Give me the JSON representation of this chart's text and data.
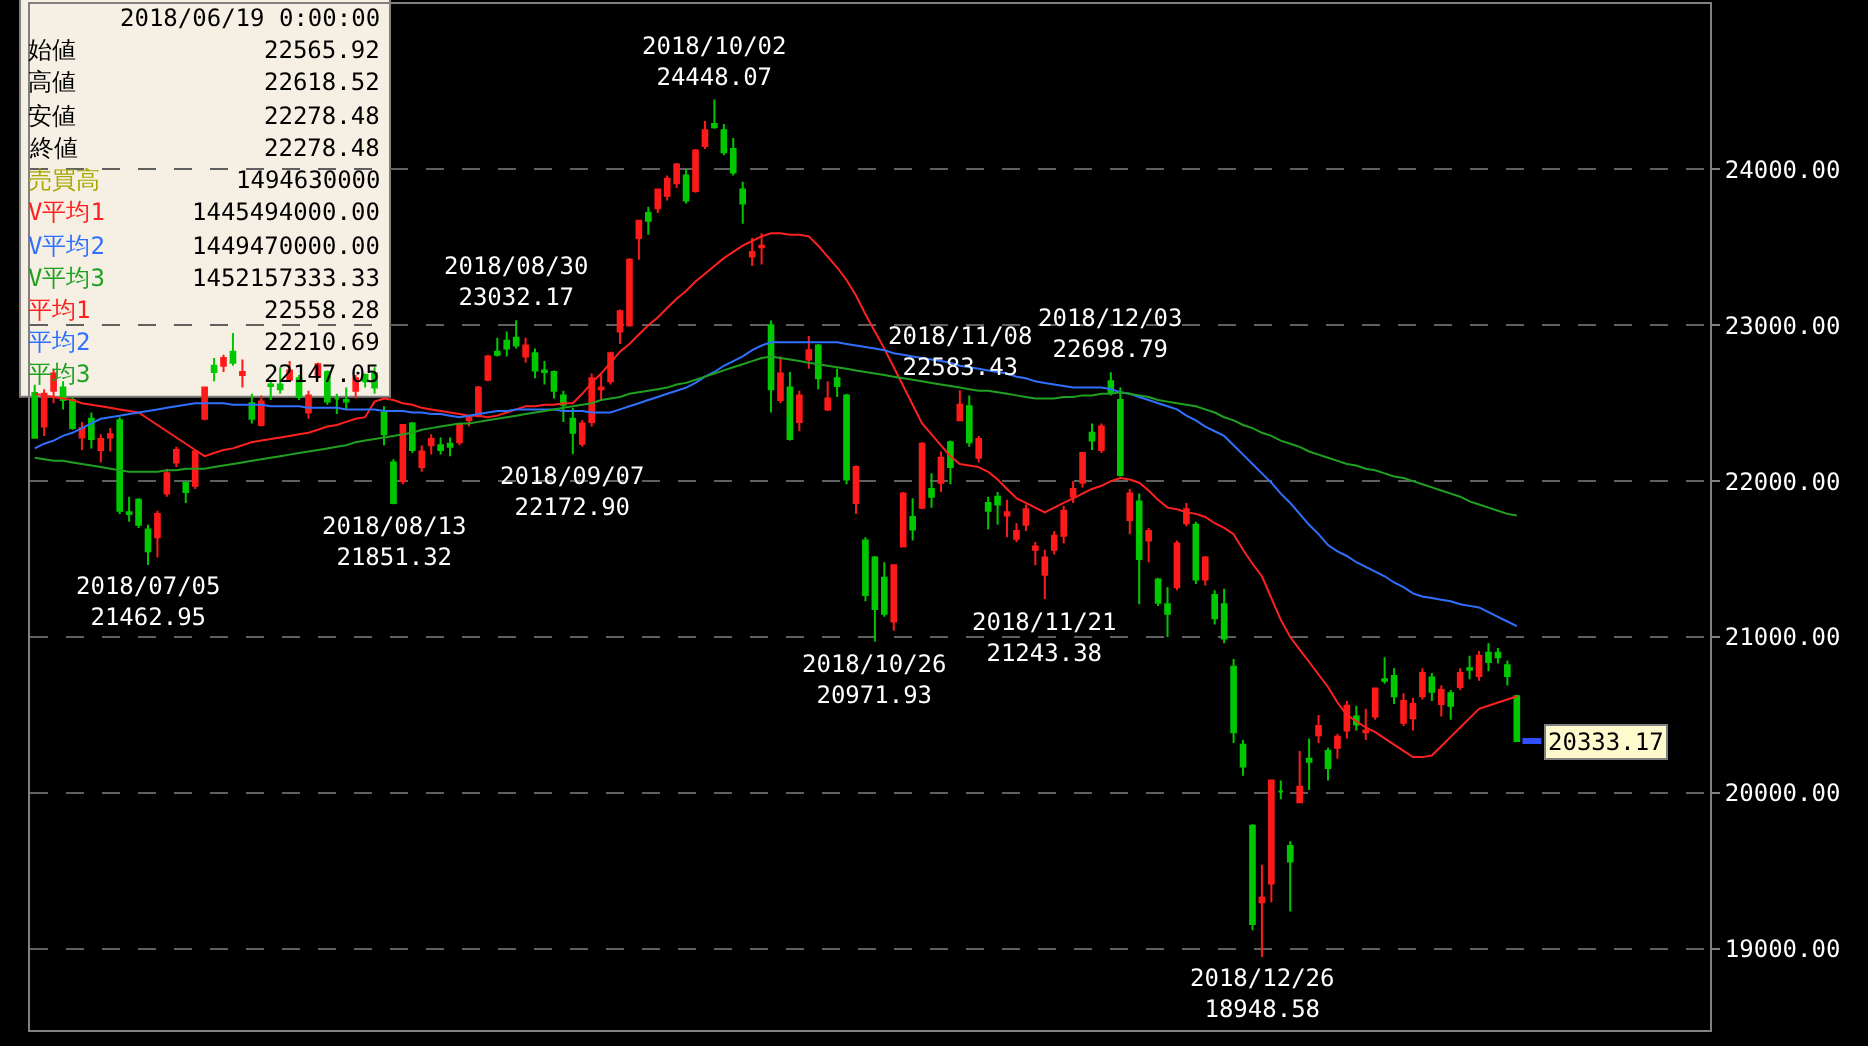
{
  "chart_data": {
    "type": "candlestick",
    "categories": [
      null,
      null,
      null,
      null,
      null,
      null,
      null,
      null,
      null,
      null,
      null,
      null,
      null,
      null,
      null,
      null,
      null,
      null,
      null,
      null,
      null,
      null,
      null,
      null,
      null,
      null,
      null,
      null,
      null,
      null,
      null,
      null,
      null,
      null,
      null,
      null,
      null,
      null,
      null,
      null,
      null,
      null,
      null,
      null,
      null,
      null,
      null,
      null,
      null,
      null,
      null,
      null,
      null,
      null,
      null,
      null,
      null,
      null,
      null,
      null,
      null,
      null,
      null,
      null,
      null,
      null,
      null,
      null,
      null,
      null,
      null,
      null,
      null,
      null,
      null,
      null,
      null,
      null,
      null,
      null,
      null,
      null,
      null,
      null,
      null,
      null,
      null,
      null,
      null,
      null,
      null,
      null,
      null,
      null,
      null,
      null,
      null,
      null,
      null,
      null,
      null,
      null,
      null,
      null,
      null,
      null,
      null,
      null,
      null,
      null,
      null,
      null,
      null,
      null,
      null,
      null,
      null,
      null,
      null,
      null,
      null,
      null,
      null,
      null,
      null,
      null,
      null,
      null,
      null,
      null,
      null,
      null,
      null,
      null,
      null,
      null,
      null,
      null,
      null,
      null,
      null,
      null,
      null,
      null,
      null,
      null,
      null,
      null,
      null,
      null,
      null,
      null,
      null,
      null,
      null,
      null,
      null,
      null
    ],
    "ohlc": [
      [
        22565.92,
        22618.52,
        22278.48,
        22278.48
      ],
      [
        22350,
        22590,
        22290,
        22560
      ],
      [
        22580,
        22720,
        22500,
        22690
      ],
      [
        22600,
        22640,
        22460,
        22520
      ],
      [
        22520,
        22540,
        22330,
        22340
      ],
      [
        22280,
        22380,
        22200,
        22340
      ],
      [
        22400,
        22440,
        22210,
        22270
      ],
      [
        22200,
        22300,
        22120,
        22270
      ],
      [
        22280,
        22340,
        22190,
        22300
      ],
      [
        22390,
        22410,
        21790,
        21810
      ],
      [
        21800,
        21900,
        21740,
        21790
      ],
      [
        21880,
        21890,
        21700,
        21720
      ],
      [
        21690,
        21720,
        21462.95,
        21550
      ],
      [
        21640,
        21810,
        21510,
        21790
      ],
      [
        21920,
        22080,
        21900,
        22050
      ],
      [
        22120,
        22220,
        22090,
        22200
      ],
      [
        21990,
        22000,
        21860,
        21930
      ],
      [
        21970,
        22200,
        21950,
        22190
      ],
      [
        22400,
        22600,
        22390,
        22600
      ],
      [
        22740,
        22790,
        22640,
        22700
      ],
      [
        22740,
        22810,
        22700,
        22790
      ],
      [
        22830,
        22950,
        22740,
        22760
      ],
      [
        22680,
        22780,
        22600,
        22700
      ],
      [
        22500,
        22560,
        22370,
        22400
      ],
      [
        22360,
        22550,
        22350,
        22510
      ],
      [
        22620,
        22640,
        22520,
        22610
      ],
      [
        22620,
        22730,
        22560,
        22590
      ],
      [
        22650,
        22770,
        22640,
        22710
      ],
      [
        22660,
        22680,
        22520,
        22540
      ],
      [
        22440,
        22580,
        22400,
        22550
      ],
      [
        22670,
        22760,
        22660,
        22750
      ],
      [
        22700,
        22710,
        22490,
        22510
      ],
      [
        22530,
        22560,
        22430,
        22530
      ],
      [
        22520,
        22600,
        22460,
        22510
      ],
      [
        22580,
        22680,
        22530,
        22660
      ],
      [
        22680,
        22690,
        22600,
        22640
      ],
      [
        22690,
        22730,
        22560,
        22600
      ],
      [
        22440,
        22480,
        22230,
        22300
      ],
      [
        22120,
        22140,
        21851.32,
        21860
      ],
      [
        22000,
        22360,
        21980,
        22360
      ],
      [
        22370,
        22380,
        22180,
        22200
      ],
      [
        22090,
        22230,
        22060,
        22190
      ],
      [
        22230,
        22300,
        22170,
        22270
      ],
      [
        22230,
        22280,
        22170,
        22200
      ],
      [
        22240,
        22280,
        22160,
        22220
      ],
      [
        22250,
        22370,
        22230,
        22360
      ],
      [
        22390,
        22420,
        22350,
        22410
      ],
      [
        22420,
        22610,
        22410,
        22600
      ],
      [
        22650,
        22810,
        22640,
        22800
      ],
      [
        22830,
        22920,
        22800,
        22810
      ],
      [
        22900,
        22960,
        22800,
        22850
      ],
      [
        22920,
        23032.17,
        22850,
        22870
      ],
      [
        22800,
        22920,
        22760,
        22870
      ],
      [
        22820,
        22850,
        22660,
        22710
      ],
      [
        22710,
        22770,
        22620,
        22700
      ],
      [
        22700,
        22710,
        22530,
        22580
      ],
      [
        22550,
        22580,
        22380,
        22490
      ],
      [
        22400,
        22470,
        22172.9,
        22310
      ],
      [
        22240,
        22390,
        22220,
        22370
      ],
      [
        22380,
        22690,
        22350,
        22660
      ],
      [
        22590,
        22690,
        22520,
        22600
      ],
      [
        22640,
        22830,
        22620,
        22820
      ],
      [
        22960,
        23100,
        22880,
        23090
      ],
      [
        23000,
        23430,
        22990,
        23420
      ],
      [
        23560,
        23670,
        23420,
        23670
      ],
      [
        23720,
        23760,
        23580,
        23670
      ],
      [
        23750,
        23870,
        23720,
        23870
      ],
      [
        23830,
        23960,
        23800,
        23940
      ],
      [
        23910,
        24040,
        23880,
        24030
      ],
      [
        23960,
        24000,
        23780,
        23800
      ],
      [
        23860,
        24130,
        23850,
        24120
      ],
      [
        24150,
        24310,
        24130,
        24250
      ],
      [
        24290,
        24448.07,
        24260,
        24270
      ],
      [
        24250,
        24290,
        24090,
        24110
      ],
      [
        24130,
        24200,
        23960,
        23980
      ],
      [
        23870,
        23920,
        23650,
        23780
      ],
      [
        23440,
        23560,
        23380,
        23470
      ],
      [
        23500,
        23590,
        23390,
        23510
      ],
      [
        23000,
        23030,
        22440,
        22590
      ],
      [
        22520,
        22800,
        22500,
        22690
      ],
      [
        22600,
        22700,
        22260,
        22270
      ],
      [
        22380,
        22580,
        22320,
        22550
      ],
      [
        22780,
        22930,
        22720,
        22840
      ],
      [
        22870,
        22880,
        22590,
        22660
      ],
      [
        22460,
        22640,
        22450,
        22530
      ],
      [
        22660,
        22720,
        22540,
        22610
      ],
      [
        22550,
        22560,
        21980,
        22010
      ],
      [
        21860,
        22100,
        21790,
        22090
      ],
      [
        21620,
        21640,
        21230,
        21270
      ],
      [
        21510,
        21520,
        20971.93,
        21180
      ],
      [
        21380,
        21480,
        21130,
        21150
      ],
      [
        21100,
        21460,
        21040,
        21460
      ],
      [
        21580,
        21930,
        21580,
        21920
      ],
      [
        21770,
        21890,
        21620,
        21690
      ],
      [
        21830,
        22250,
        21820,
        22240
      ],
      [
        21950,
        22050,
        21830,
        21900
      ],
      [
        21990,
        22190,
        21930,
        22150
      ],
      [
        22250,
        22260,
        21980,
        22090
      ],
      [
        22390,
        22583.43,
        22390,
        22490
      ],
      [
        22480,
        22550,
        22220,
        22250
      ],
      [
        22150,
        22290,
        22120,
        22270
      ],
      [
        21860,
        21900,
        21690,
        21810
      ],
      [
        21900,
        21930,
        21720,
        21850
      ],
      [
        21780,
        21880,
        21640,
        21800
      ],
      [
        21630,
        21730,
        21610,
        21680
      ],
      [
        21720,
        21850,
        21680,
        21820
      ],
      [
        21560,
        21610,
        21460,
        21580
      ],
      [
        21400,
        21560,
        21243.38,
        21510
      ],
      [
        21560,
        21680,
        21530,
        21650
      ],
      [
        21650,
        21840,
        21600,
        21810
      ],
      [
        21900,
        22000,
        21860,
        21950
      ],
      [
        21990,
        22180,
        21960,
        22180
      ],
      [
        22310,
        22370,
        22200,
        22260
      ],
      [
        22200,
        22370,
        22180,
        22350
      ],
      [
        22640,
        22698.79,
        22550,
        22570
      ],
      [
        22520,
        22600,
        22030,
        22040
      ],
      [
        21750,
        21950,
        21660,
        21920
      ],
      [
        21870,
        21920,
        21210,
        21500
      ],
      [
        21620,
        21700,
        21480,
        21680
      ],
      [
        21370,
        21380,
        21200,
        21220
      ],
      [
        21210,
        21320,
        21000,
        21150
      ],
      [
        21320,
        21620,
        21300,
        21600
      ],
      [
        21730,
        21860,
        21710,
        21820
      ],
      [
        21720,
        21740,
        21340,
        21370
      ],
      [
        21370,
        21520,
        21330,
        21510
      ],
      [
        21270,
        21300,
        21080,
        21120
      ],
      [
        21210,
        21310,
        20960,
        20990
      ],
      [
        20810,
        20860,
        20320,
        20390
      ],
      [
        20310,
        20340,
        20110,
        20170
      ],
      [
        19790,
        19800,
        19120,
        19160
      ],
      [
        19300,
        19540,
        18948.58,
        19330
      ],
      [
        19420,
        20080,
        19300,
        20080
      ],
      [
        20010,
        20080,
        19960,
        20010
      ],
      [
        19660,
        19690,
        19240,
        19560
      ],
      [
        19940,
        20270,
        19940,
        20040
      ],
      [
        20220,
        20350,
        20020,
        20200
      ],
      [
        20370,
        20500,
        20320,
        20430
      ],
      [
        20270,
        20290,
        20080,
        20160
      ],
      [
        20290,
        20380,
        20220,
        20360
      ],
      [
        20400,
        20590,
        20350,
        20560
      ],
      [
        20490,
        20560,
        20400,
        20440
      ],
      [
        20390,
        20540,
        20340,
        20400
      ],
      [
        20490,
        20670,
        20470,
        20670
      ],
      [
        20730,
        20870,
        20700,
        20720
      ],
      [
        20750,
        20800,
        20570,
        20620
      ],
      [
        20450,
        20640,
        20430,
        20590
      ],
      [
        20480,
        20610,
        20400,
        20570
      ],
      [
        20620,
        20800,
        20600,
        20770
      ],
      [
        20740,
        20770,
        20590,
        20650
      ],
      [
        20570,
        20690,
        20490,
        20660
      ],
      [
        20640,
        20660,
        20470,
        20560
      ],
      [
        20680,
        20800,
        20660,
        20770
      ],
      [
        20800,
        20880,
        20730,
        20790
      ],
      [
        20750,
        20910,
        20720,
        20880
      ],
      [
        20900,
        20960,
        20780,
        20840
      ],
      [
        20900,
        20930,
        20830,
        20870
      ],
      [
        20820,
        20850,
        20690,
        20750
      ],
      [
        20620,
        20630,
        20330,
        20333.17
      ]
    ],
    "colors": [
      "#00c800",
      "#ff1a1a",
      "#ff1a1a",
      "#00c800",
      "#00c800",
      "#ff1a1a",
      "#00c800",
      "#ff1a1a",
      "#ff1a1a",
      "#00c800",
      "#00c800",
      "#00c800",
      "#00c800",
      "#ff1a1a",
      "#ff1a1a",
      "#ff1a1a",
      "#00c800",
      "#ff1a1a",
      "#ff1a1a",
      "#00c800",
      "#ff1a1a",
      "#00c800",
      "#ff1a1a",
      "#00c800",
      "#ff1a1a",
      "#00c800",
      "#00c800",
      "#ff1a1a",
      "#00c800",
      "#ff1a1a",
      "#ff1a1a",
      "#00c800",
      "#00c800",
      "#00c800",
      "#ff1a1a",
      "#00c800",
      "#00c800",
      "#00c800",
      "#00c800",
      "#ff1a1a",
      "#00c800",
      "#ff1a1a",
      "#ff1a1a",
      "#00c800",
      "#00c800",
      "#ff1a1a",
      "#ff1a1a",
      "#ff1a1a",
      "#ff1a1a",
      "#00c800",
      "#00c800",
      "#00c800",
      "#ff1a1a",
      "#00c800",
      "#00c800",
      "#00c800",
      "#00c800",
      "#00c800",
      "#ff1a1a",
      "#ff1a1a",
      "#ff1a1a",
      "#ff1a1a",
      "#ff1a1a",
      "#ff1a1a",
      "#ff1a1a",
      "#00c800",
      "#ff1a1a",
      "#ff1a1a",
      "#ff1a1a",
      "#00c800",
      "#ff1a1a",
      "#ff1a1a",
      "#00c800",
      "#00c800",
      "#00c800",
      "#00c800",
      "#ff1a1a",
      "#ff1a1a",
      "#00c800",
      "#ff1a1a",
      "#00c800",
      "#ff1a1a",
      "#ff1a1a",
      "#00c800",
      "#ff1a1a",
      "#00c800",
      "#00c800",
      "#ff1a1a",
      "#00c800",
      "#00c800",
      "#00c800",
      "#ff1a1a",
      "#ff1a1a",
      "#00c800",
      "#ff1a1a",
      "#00c800",
      "#ff1a1a",
      "#00c800",
      "#ff1a1a",
      "#00c800",
      "#ff1a1a",
      "#00c800",
      "#00c800",
      "#ff1a1a",
      "#ff1a1a",
      "#ff1a1a",
      "#ff1a1a",
      "#ff1a1a",
      "#ff1a1a",
      "#ff1a1a",
      "#ff1a1a",
      "#ff1a1a",
      "#00c800",
      "#ff1a1a",
      "#00c800",
      "#00c800",
      "#ff1a1a",
      "#00c800",
      "#ff1a1a",
      "#00c800",
      "#00c800",
      "#ff1a1a",
      "#ff1a1a",
      "#00c800",
      "#ff1a1a",
      "#00c800",
      "#00c800",
      "#00c800",
      "#00c800",
      "#00c800",
      "#ff1a1a",
      "#ff1a1a",
      "#00c800",
      "#00c800",
      "#ff1a1a",
      "#00c800",
      "#ff1a1a",
      "#00c800",
      "#ff1a1a",
      "#ff1a1a",
      "#00c800",
      "#ff1a1a",
      "#ff1a1a",
      "#00c800",
      "#00c800",
      "#ff1a1a",
      "#ff1a1a",
      "#ff1a1a",
      "#00c800",
      "#ff1a1a",
      "#00c800",
      "#ff1a1a",
      "#00c800",
      "#ff1a1a",
      "#00c800",
      "#00c800",
      "#00c800",
      "#00c800"
    ],
    "ref_lines": [
      {
        "axis": "y",
        "value": 20333.17,
        "label": "20333.17",
        "color": "#3050ff"
      }
    ],
    "series": [
      {
        "type": "line",
        "color": "#ff2020",
        "values": [
          22560,
          22550,
          22540,
          22530,
          22520,
          22500,
          22490,
          22480,
          22470,
          22460,
          22450,
          22440,
          22400,
          22360,
          22320,
          22280,
          22240,
          22200,
          22160,
          22180,
          22200,
          22210,
          22230,
          22250,
          22260,
          22270,
          22280,
          22290,
          22300,
          22310,
          22330,
          22350,
          22360,
          22380,
          22400,
          22410,
          22510,
          22530,
          22520,
          22500,
          22490,
          22470,
          22460,
          22450,
          22440,
          22430,
          22420,
          22420,
          22410,
          22420,
          22440,
          22460,
          22480,
          22480,
          22490,
          22490,
          22500,
          22500,
          22560,
          22630,
          22690,
          22760,
          22830,
          22880,
          22940,
          23000,
          23050,
          23110,
          23170,
          23220,
          23280,
          23330,
          23380,
          23430,
          23470,
          23510,
          23540,
          23570,
          23590,
          23590,
          23580,
          23580,
          23570,
          23510,
          23440,
          23370,
          23290,
          23190,
          23070,
          22960,
          22850,
          22730,
          22610,
          22490,
          22370,
          22300,
          22230,
          22160,
          22110,
          22100,
          22090,
          22060,
          22010,
          21950,
          21890,
          21860,
          21830,
          21800,
          21830,
          21860,
          21890,
          21920,
          21950,
          21970,
          22000,
          22020,
          22010,
          21990,
          21940,
          21880,
          21830,
          21820,
          21800,
          21790,
          21770,
          21730,
          21700,
          21660,
          21560,
          21470,
          21390,
          21250,
          21110,
          21000,
          20920,
          20840,
          20760,
          20680,
          20580,
          20500,
          20460,
          20420,
          20390,
          20350,
          20310,
          20270,
          20230,
          20230,
          20240,
          20300,
          20360,
          20420,
          20480,
          20540,
          20560,
          20580,
          20600,
          20620
        ]
      },
      {
        "type": "line",
        "color": "#3070ff",
        "values": [
          22210,
          22240,
          22260,
          22290,
          22310,
          22340,
          22370,
          22400,
          22410,
          22420,
          22430,
          22440,
          22450,
          22460,
          22470,
          22480,
          22490,
          22500,
          22500,
          22500,
          22500,
          22490,
          22490,
          22490,
          22490,
          22480,
          22480,
          22480,
          22480,
          22470,
          22470,
          22470,
          22470,
          22460,
          22460,
          22460,
          22460,
          22450,
          22450,
          22450,
          22440,
          22440,
          22430,
          22430,
          22420,
          22410,
          22420,
          22430,
          22440,
          22450,
          22450,
          22460,
          22460,
          22460,
          22460,
          22460,
          22450,
          22450,
          22450,
          22440,
          22440,
          22440,
          22460,
          22480,
          22500,
          22520,
          22540,
          22560,
          22580,
          22600,
          22630,
          22670,
          22700,
          22740,
          22770,
          22800,
          22840,
          22870,
          22890,
          22890,
          22890,
          22890,
          22890,
          22890,
          22890,
          22890,
          22880,
          22870,
          22860,
          22850,
          22840,
          22820,
          22810,
          22800,
          22790,
          22780,
          22770,
          22760,
          22740,
          22730,
          22720,
          22710,
          22700,
          22690,
          22670,
          22660,
          22640,
          22630,
          22620,
          22610,
          22600,
          22600,
          22600,
          22600,
          22590,
          22570,
          22560,
          22540,
          22520,
          22500,
          22480,
          22460,
          22420,
          22390,
          22350,
          22320,
          22290,
          22230,
          22170,
          22110,
          22050,
          21990,
          21920,
          21860,
          21790,
          21720,
          21660,
          21590,
          21550,
          21520,
          21480,
          21450,
          21420,
          21390,
          21350,
          21320,
          21280,
          21260,
          21250,
          21240,
          21230,
          21210,
          21200,
          21190,
          21160,
          21130,
          21100,
          21070
        ]
      },
      {
        "type": "line",
        "color": "#20a020",
        "values": [
          22150,
          22140,
          22130,
          22130,
          22120,
          22110,
          22100,
          22090,
          22080,
          22070,
          22060,
          22060,
          22060,
          22060,
          22070,
          22070,
          22080,
          22080,
          22080,
          22090,
          22100,
          22110,
          22120,
          22130,
          22140,
          22150,
          22160,
          22170,
          22180,
          22190,
          22200,
          22210,
          22220,
          22230,
          22250,
          22260,
          22270,
          22280,
          22290,
          22300,
          22310,
          22330,
          22340,
          22350,
          22360,
          22370,
          22370,
          22380,
          22390,
          22400,
          22410,
          22420,
          22430,
          22440,
          22450,
          22460,
          22470,
          22480,
          22490,
          22500,
          22520,
          22530,
          22540,
          22560,
          22570,
          22580,
          22590,
          22600,
          22620,
          22630,
          22650,
          22670,
          22690,
          22710,
          22730,
          22750,
          22770,
          22790,
          22800,
          22790,
          22780,
          22770,
          22760,
          22750,
          22740,
          22730,
          22720,
          22710,
          22700,
          22690,
          22680,
          22670,
          22660,
          22650,
          22640,
          22630,
          22620,
          22610,
          22600,
          22590,
          22580,
          22580,
          22570,
          22560,
          22550,
          22540,
          22530,
          22530,
          22530,
          22540,
          22540,
          22550,
          22550,
          22560,
          22560,
          22570,
          22560,
          22550,
          22540,
          22520,
          22510,
          22500,
          22490,
          22480,
          22460,
          22440,
          22410,
          22390,
          22360,
          22340,
          22310,
          22290,
          22260,
          22240,
          22220,
          22190,
          22170,
          22150,
          22130,
          22110,
          22100,
          22080,
          22070,
          22050,
          22030,
          22020,
          22000,
          21980,
          21960,
          21940,
          21920,
          21900,
          21870,
          21850,
          21830,
          21810,
          21790,
          21780
        ]
      }
    ],
    "ylim": [
      18480,
      25060
    ],
    "yticks": [
      {
        "value": 19000,
        "label": "19000.00"
      },
      {
        "value": 20000,
        "label": "20000.00"
      },
      {
        "value": 21000,
        "label": "21000.00"
      },
      {
        "value": 22000,
        "label": "22000.00"
      },
      {
        "value": 23000,
        "label": "23000.00"
      },
      {
        "value": 24000,
        "label": "24000.00"
      }
    ],
    "grid": "y",
    "tick_labels": "y",
    "annotations": [
      "2018/06/19 0:00:00",
      "始値",
      "22565.92",
      "高値",
      "22618.52",
      "安値",
      "22278.48",
      "終値",
      "22278.48",
      "売買高",
      "1494630000",
      "V平均1",
      "1445494000.00",
      "V平均2",
      "1449470000.00",
      "V平均3",
      "1452157333.33",
      "平均1",
      "22558.28",
      "平均2",
      "22210.69",
      "平均3",
      "22147.05",
      {
        "text": "2018/07/05\n21462.95",
        "y": 21462.95
      },
      {
        "text": "2018/08/13\n21851.32",
        "y": 21851.32
      },
      {
        "text": "2018/08/30\n23032.17",
        "y": 23032.17
      },
      {
        "text": "2018/09/07\n22172.90",
        "y": 22172.9
      },
      {
        "text": "2018/10/02\n24448.07",
        "y": 24448.07
      },
      {
        "text": "2018/10/26\n20971.93",
        "y": 20971.93
      },
      {
        "text": "2018/11/08\n22583.43",
        "y": 22583.43
      },
      {
        "text": "2018/11/21\n21243.38",
        "y": 21243.38
      },
      {
        "text": "2018/12/03\n22698.79",
        "y": 22698.79
      },
      {
        "text": "2018/12/26\n18948.58",
        "y": 18948.58
      }
    ]
  }
}
